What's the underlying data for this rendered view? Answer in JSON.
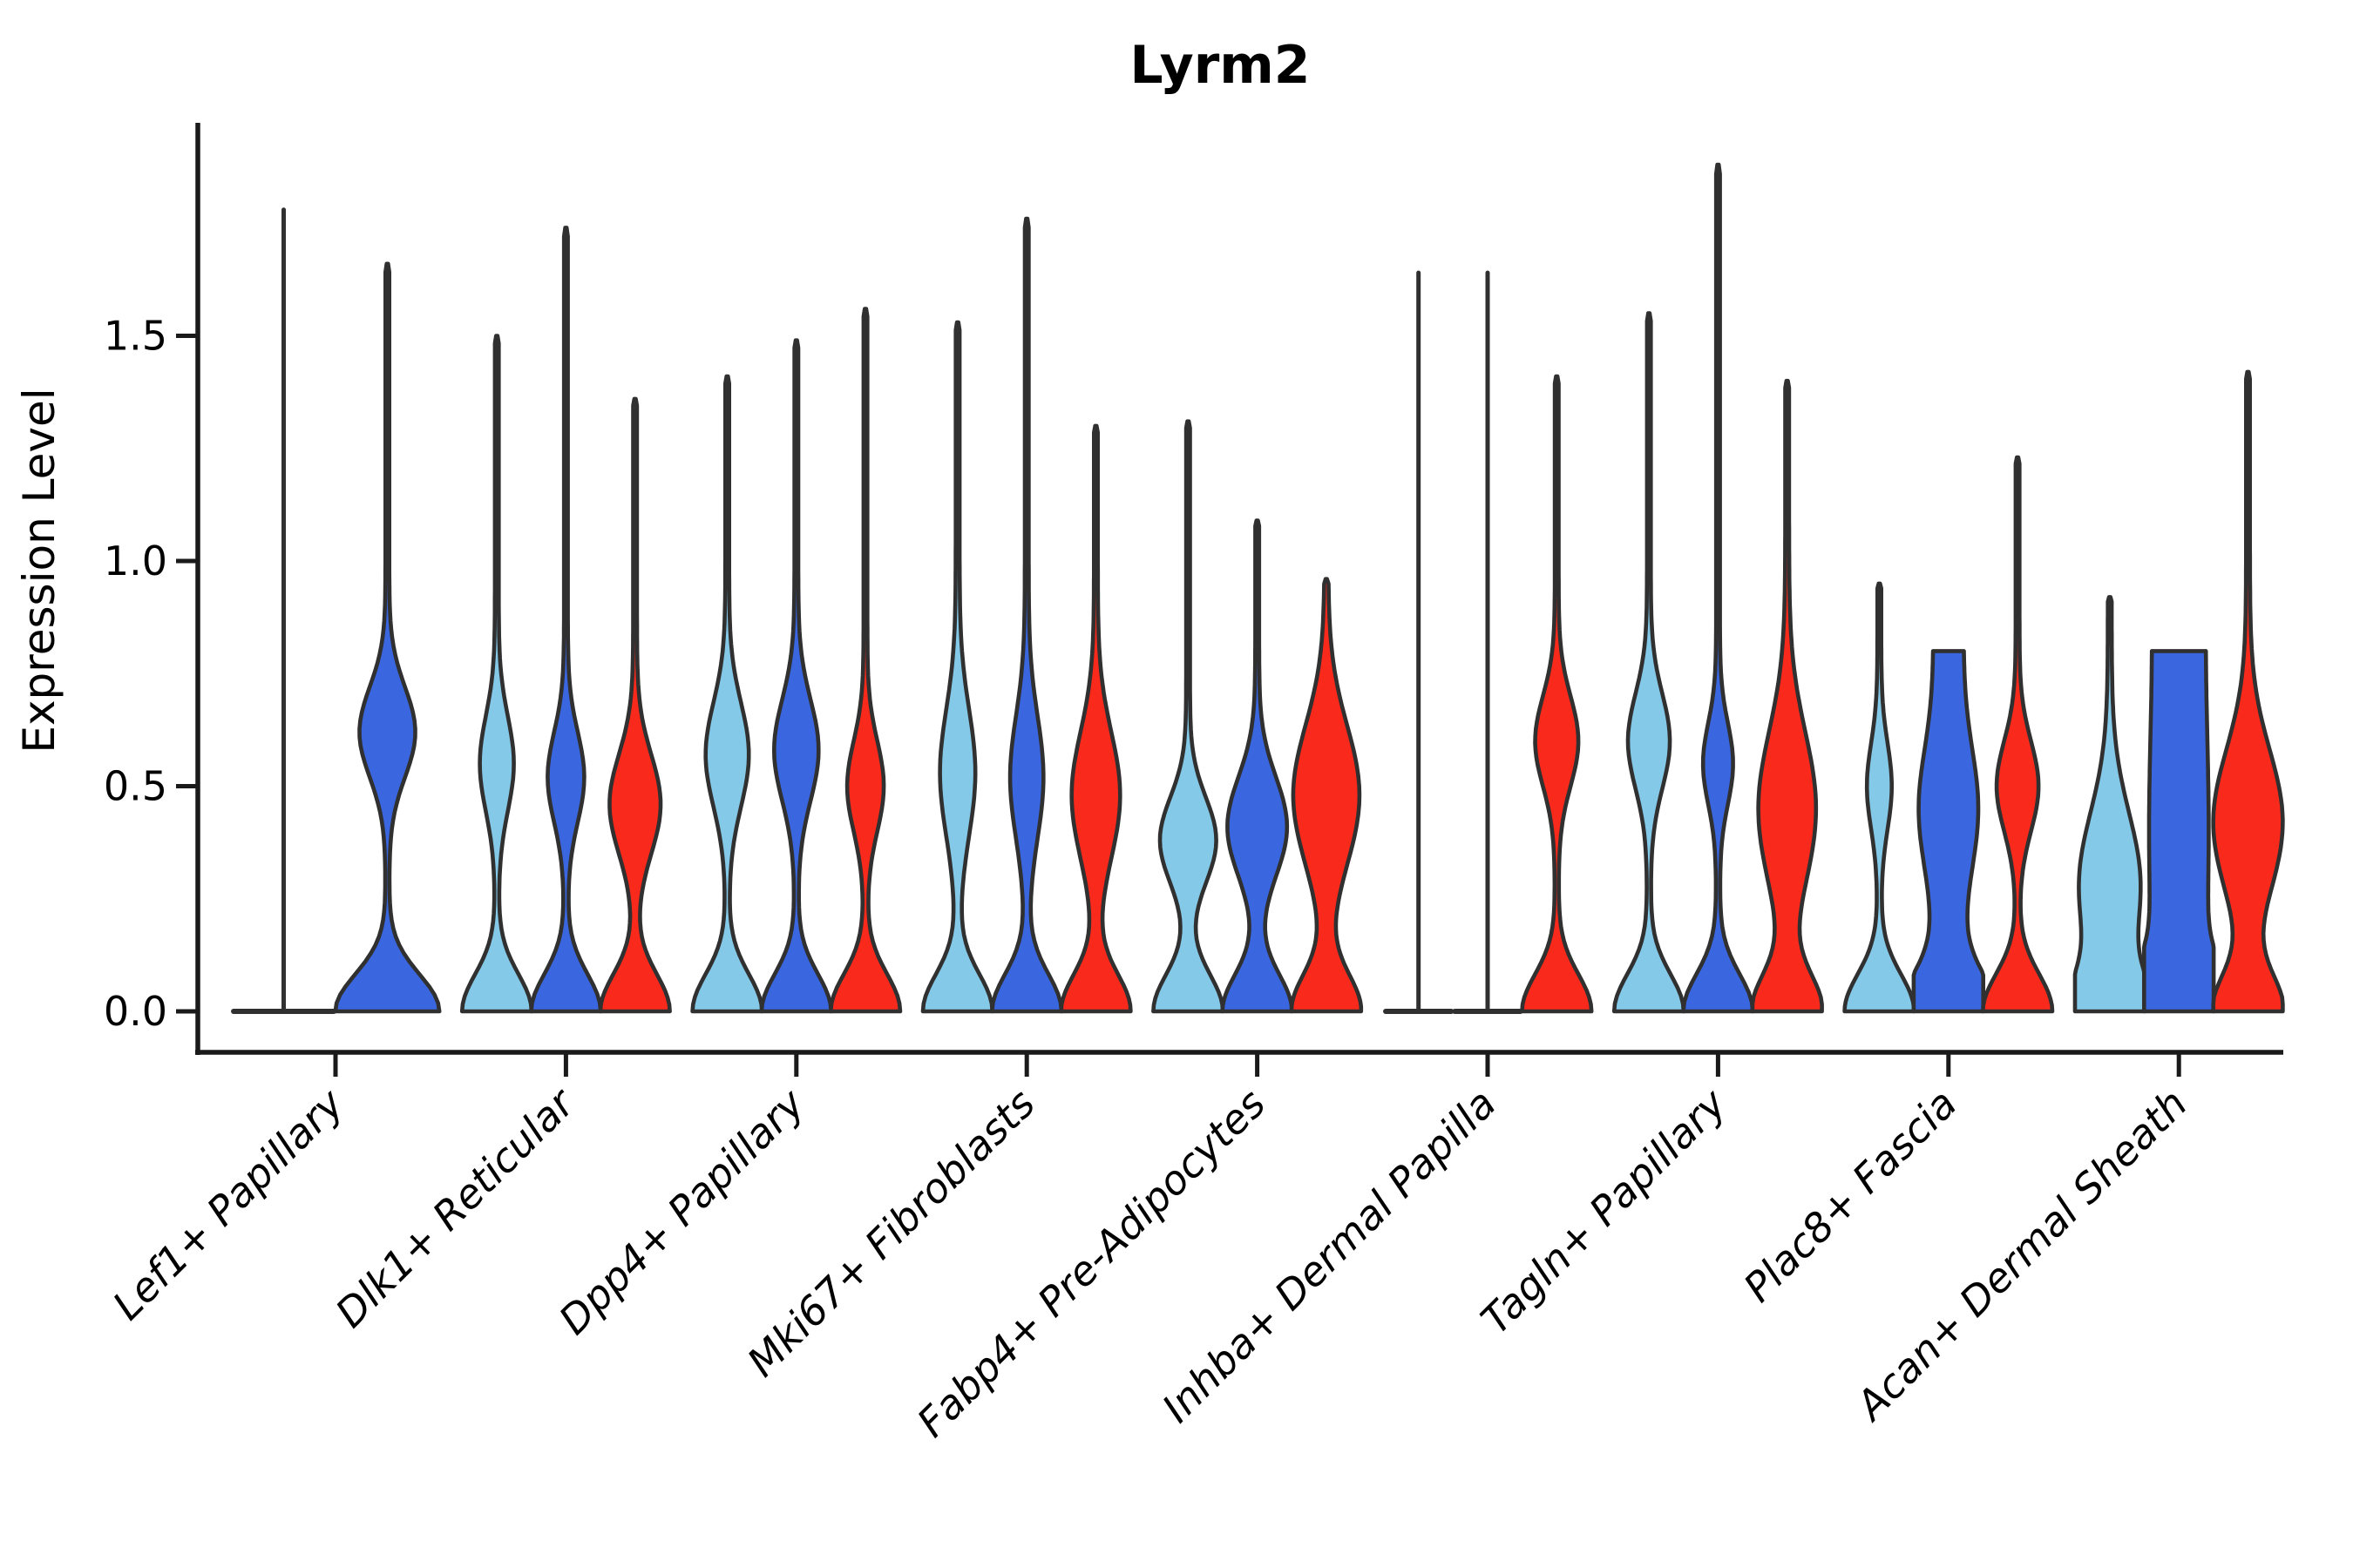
{
  "figure": {
    "title": "Lyrm2",
    "y_axis_label": "Expression Level",
    "x_axis_label": ""
  },
  "chart_data": {
    "type": "violin",
    "title": "Lyrm2",
    "subtitle": "",
    "xlabel": "",
    "ylabel": "Expression Level",
    "ylim": [
      -0.09,
      1.97
    ],
    "yticks": [
      "0.0",
      "0.5",
      "1.0",
      "1.5"
    ],
    "ytick_values": [
      0.0,
      0.5,
      1.0,
      1.5
    ],
    "grid": false,
    "legend_position": "none",
    "background_color": "#ffffff",
    "outline_color": "#303030",
    "axis_color": "#1a1a1a",
    "split_colors": {
      "light_blue": "#85C9E8",
      "royal_blue": "#3A67DF",
      "red": "#F9291C"
    },
    "categories": [
      "Lef1+ Papillary",
      "Dlk1+ Reticular",
      "Dpp4+ Papillary",
      "Mki67+ Fibroblasts",
      "Fabp4+ Pre-Adipocytes",
      "Inhba+ Dermal Papilla",
      "Tagln+ Papillary",
      "Plac8+ Fascia",
      "Acan+ Dermal Sheath"
    ],
    "groups": [
      {
        "category": "Lef1+ Papillary",
        "violins": [
          {
            "color": "light_blue",
            "style": "flat",
            "max_expression": 1.78
          },
          {
            "color": "royal_blue",
            "style": "normal",
            "max_expression": 1.66,
            "bulge_center": 0.62,
            "bulge_sd": 0.1,
            "bulge_amp": 0.52
          }
        ]
      },
      {
        "category": "Dlk1+ Reticular",
        "violins": [
          {
            "color": "light_blue",
            "style": "normal",
            "max_expression": 1.5,
            "bulge_center": 0.55,
            "bulge_sd": 0.105,
            "bulge_amp": 0.46
          },
          {
            "color": "royal_blue",
            "style": "normal",
            "max_expression": 1.74,
            "bulge_center": 0.52,
            "bulge_sd": 0.1,
            "bulge_amp": 0.5
          },
          {
            "color": "red",
            "style": "normal",
            "max_expression": 1.36,
            "bulge_center": 0.46,
            "bulge_sd": 0.11,
            "bulge_amp": 0.72
          }
        ]
      },
      {
        "category": "Dpp4+ Papillary",
        "violins": [
          {
            "color": "light_blue",
            "style": "normal",
            "max_expression": 1.41,
            "bulge_center": 0.57,
            "bulge_sd": 0.115,
            "bulge_amp": 0.6
          },
          {
            "color": "royal_blue",
            "style": "normal",
            "max_expression": 1.49,
            "bulge_center": 0.58,
            "bulge_sd": 0.112,
            "bulge_amp": 0.62
          },
          {
            "color": "red",
            "style": "normal",
            "max_expression": 1.56,
            "bulge_center": 0.5,
            "bulge_sd": 0.1,
            "bulge_amp": 0.5
          }
        ]
      },
      {
        "category": "Mki67+ Fibroblasts",
        "violins": [
          {
            "color": "light_blue",
            "style": "normal",
            "max_expression": 1.53,
            "bulge_center": 0.53,
            "bulge_sd": 0.14,
            "bulge_amp": 0.48
          },
          {
            "color": "royal_blue",
            "style": "normal",
            "max_expression": 1.76,
            "bulge_center": 0.52,
            "bulge_sd": 0.135,
            "bulge_amp": 0.45
          },
          {
            "color": "red",
            "style": "normal",
            "max_expression": 1.3,
            "bulge_center": 0.48,
            "bulge_sd": 0.14,
            "bulge_amp": 0.68
          }
        ]
      },
      {
        "category": "Fabp4+ Pre-Adipocytes",
        "violins": [
          {
            "color": "light_blue",
            "style": "normal",
            "max_expression": 1.31,
            "bulge_center": 0.38,
            "bulge_sd": 0.095,
            "bulge_amp": 0.8
          },
          {
            "color": "royal_blue",
            "style": "normal",
            "max_expression": 1.09,
            "bulge_center": 0.41,
            "bulge_sd": 0.11,
            "bulge_amp": 0.85
          },
          {
            "color": "red",
            "style": "normal",
            "max_expression": 0.96,
            "bulge_center": 0.48,
            "bulge_sd": 0.155,
            "bulge_amp": 0.95
          }
        ]
      },
      {
        "category": "Inhba+ Dermal Papilla",
        "violins": [
          {
            "color": "light_blue",
            "style": "flat",
            "max_expression": 1.64
          },
          {
            "color": "royal_blue",
            "style": "flat",
            "max_expression": 1.64
          },
          {
            "color": "red",
            "style": "normal",
            "max_expression": 1.41,
            "bulge_center": 0.6,
            "bulge_sd": 0.1,
            "bulge_amp": 0.6
          }
        ]
      },
      {
        "category": "Tagln+ Papillary",
        "violins": [
          {
            "color": "light_blue",
            "style": "normal",
            "max_expression": 1.55,
            "bulge_center": 0.6,
            "bulge_sd": 0.105,
            "bulge_amp": 0.58
          },
          {
            "color": "royal_blue",
            "style": "normal",
            "max_expression": 1.88,
            "bulge_center": 0.55,
            "bulge_sd": 0.09,
            "bulge_amp": 0.4
          },
          {
            "color": "red",
            "style": "normal",
            "max_expression": 1.4,
            "bulge_center": 0.45,
            "bulge_sd": 0.17,
            "bulge_amp": 0.82
          }
        ]
      },
      {
        "category": "Plac8+ Fascia",
        "violins": [
          {
            "color": "light_blue",
            "style": "normal",
            "max_expression": 0.95,
            "bulge_center": 0.5,
            "bulge_sd": 0.095,
            "bulge_amp": 0.32
          },
          {
            "color": "royal_blue",
            "style": "column",
            "max_expression": 0.8,
            "bulge_center": 0.45,
            "bulge_sd": 0.13,
            "bulge_amp": 0.45,
            "column_amp": 0.4
          },
          {
            "color": "red",
            "style": "normal",
            "max_expression": 1.23,
            "bulge_center": 0.5,
            "bulge_sd": 0.1,
            "bulge_amp": 0.58
          }
        ]
      },
      {
        "category": "Acan+ Dermal Sheath",
        "violins": [
          {
            "color": "light_blue",
            "style": "normal",
            "max_expression": 0.92,
            "bulge_center": 0.28,
            "bulge_sd": 0.16,
            "bulge_amp": 0.88
          },
          {
            "color": "royal_blue",
            "style": "column",
            "max_expression": 0.8,
            "bulge_center": 0.4,
            "bulge_sd": 0.2,
            "bulge_amp": 0.1,
            "column_amp": 0.75
          },
          {
            "color": "red",
            "style": "normal",
            "max_expression": 1.42,
            "bulge_center": 0.42,
            "bulge_sd": 0.16,
            "bulge_amp": 1.0
          }
        ]
      }
    ]
  }
}
